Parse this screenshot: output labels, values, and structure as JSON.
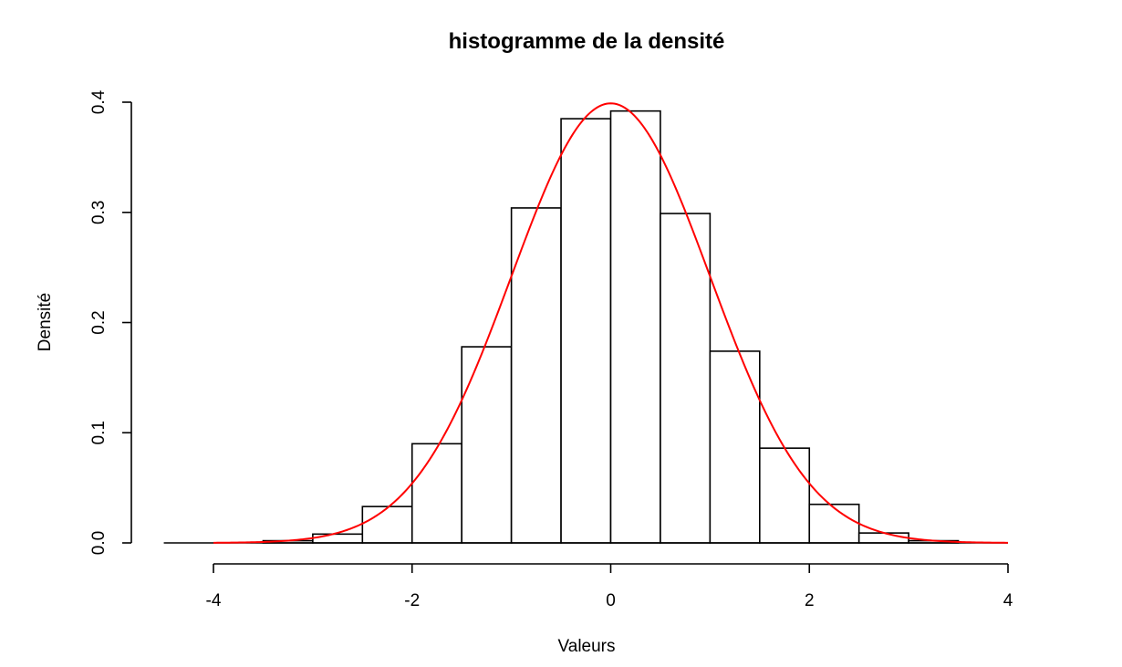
{
  "chart_data": {
    "type": "bar",
    "subtype": "histogram",
    "title": "histogramme de la densité",
    "xlabel": "Valeurs",
    "ylabel": "Densité",
    "xlim": [
      -4,
      4
    ],
    "ylim": [
      0,
      0.4
    ],
    "xticks": [
      "-4",
      "-2",
      "0",
      "2",
      "4"
    ],
    "yticks": [
      "0.0",
      "0.1",
      "0.2",
      "0.3",
      "0.4"
    ],
    "bins": {
      "edges": [
        -4.5,
        -4.0,
        -3.5,
        -3.0,
        -2.5,
        -2.0,
        -1.5,
        -1.0,
        -0.5,
        0.0,
        0.5,
        1.0,
        1.5,
        2.0,
        2.5,
        3.0,
        3.5,
        4.0
      ],
      "density": [
        0.0,
        0.0,
        0.002,
        0.008,
        0.033,
        0.09,
        0.178,
        0.304,
        0.385,
        0.392,
        0.299,
        0.174,
        0.086,
        0.035,
        0.009,
        0.002,
        0.0
      ]
    },
    "curve": {
      "type": "line",
      "description": "standard normal density",
      "color": "#ff0000",
      "x_range": [
        -4,
        4
      ],
      "peak": 0.399
    },
    "grid": false,
    "legend": "none"
  }
}
